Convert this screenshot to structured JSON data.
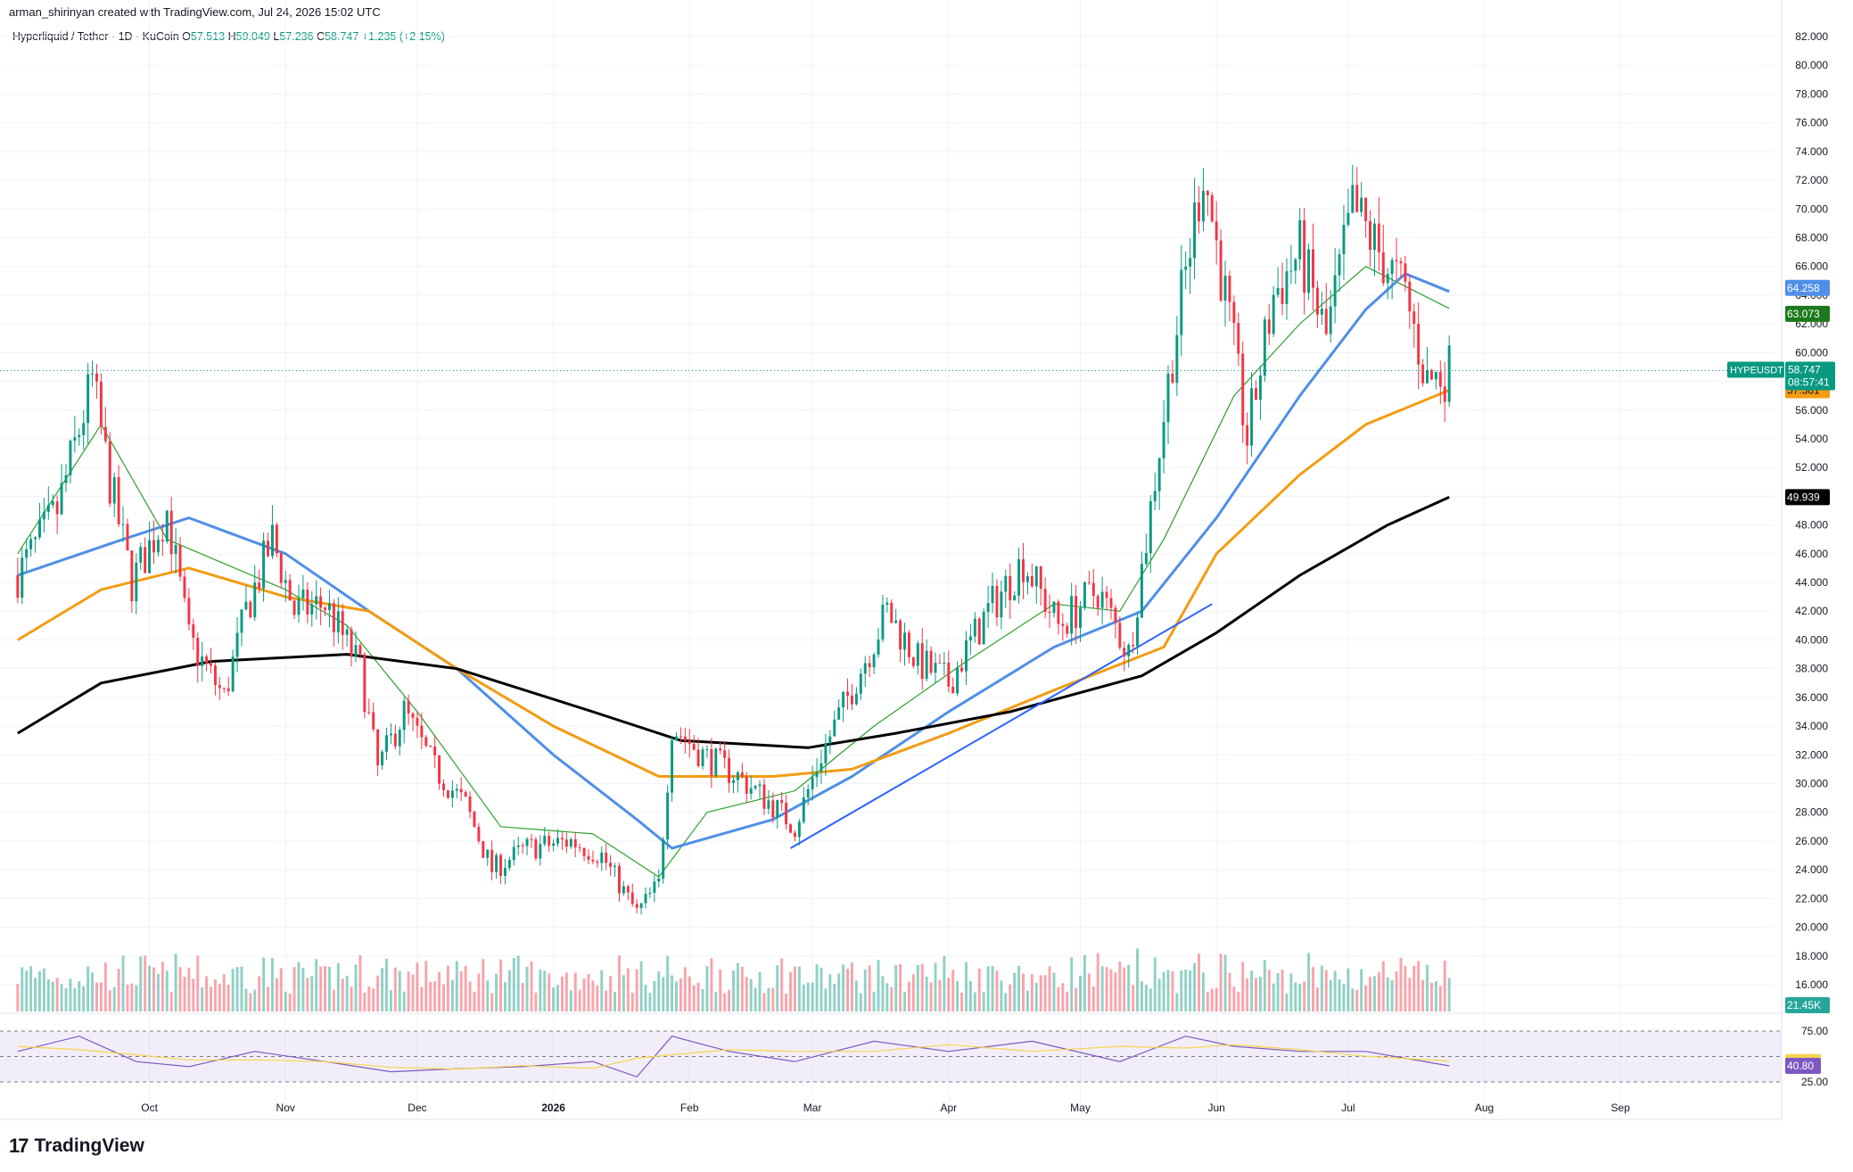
{
  "header": {
    "credit": "arman_shirinyan created with TradingView.com, Jul 24, 2026 15:02 UTC",
    "symbol": "Hyperliquid / Tether · 1D · KuCoin",
    "o_label": "O",
    "o_value": "57.513",
    "h_label": "H",
    "h_value": "59.049",
    "l_label": "L",
    "l_value": "57.236",
    "c_label": "C",
    "c_value": "58.747",
    "change": "+1.235 (+2.15%)"
  },
  "footer": {
    "brand": "TradingView"
  },
  "chart_data": {
    "type": "candlestick",
    "title": "",
    "x_labels": [
      "Oct",
      "Nov",
      "Dec",
      "2026",
      "Feb",
      "Mar",
      "Apr",
      "May",
      "Jun",
      "Jul",
      "Aug",
      "Sep"
    ],
    "y_ticks": [
      "82.000",
      "80.000",
      "78.000",
      "76.000",
      "74.000",
      "72.000",
      "70.000",
      "68.000",
      "66.000",
      "64.000",
      "62.000",
      "60.000",
      "58.000",
      "56.000",
      "54.000",
      "52.000",
      "50.000",
      "48.000",
      "46.000",
      "44.000",
      "42.000",
      "40.000",
      "38.000",
      "36.000",
      "34.000",
      "32.000",
      "30.000",
      "28.000",
      "26.000",
      "24.000",
      "22.000",
      "20.000",
      "18.000",
      "16.000"
    ],
    "ylim": [
      15,
      83
    ],
    "price_series": [
      {
        "date": "2025-09-01",
        "close": 44.5
      },
      {
        "date": "2025-09-10",
        "close": 49.0
      },
      {
        "date": "2025-09-18",
        "close": 58.0
      },
      {
        "date": "2025-09-22",
        "close": 51.0
      },
      {
        "date": "2025-09-27",
        "close": 44.0
      },
      {
        "date": "2025-10-05",
        "close": 49.0
      },
      {
        "date": "2025-10-10",
        "close": 40.0
      },
      {
        "date": "2025-10-14",
        "close": 38.0
      },
      {
        "date": "2025-10-18",
        "close": 36.0
      },
      {
        "date": "2025-10-23",
        "close": 42.0
      },
      {
        "date": "2025-10-29",
        "close": 47.0
      },
      {
        "date": "2025-11-03",
        "close": 42.0
      },
      {
        "date": "2025-11-10",
        "close": 42.5
      },
      {
        "date": "2025-11-18",
        "close": 38.0
      },
      {
        "date": "2025-11-22",
        "close": 31.0
      },
      {
        "date": "2025-11-28",
        "close": 35.0
      },
      {
        "date": "2025-12-05",
        "close": 31.0
      },
      {
        "date": "2025-12-12",
        "close": 28.5
      },
      {
        "date": "2025-12-18",
        "close": 24.0
      },
      {
        "date": "2025-12-26",
        "close": 25.5
      },
      {
        "date": "2026-01-05",
        "close": 26.0
      },
      {
        "date": "2026-01-12",
        "close": 25.0
      },
      {
        "date": "2026-01-20",
        "close": 21.0
      },
      {
        "date": "2026-01-25",
        "close": 23.0
      },
      {
        "date": "2026-01-28",
        "close": 34.0
      },
      {
        "date": "2026-02-04",
        "close": 32.0
      },
      {
        "date": "2026-02-12",
        "close": 30.5
      },
      {
        "date": "2026-02-20",
        "close": 28.5
      },
      {
        "date": "2026-02-25",
        "close": 27.0
      },
      {
        "date": "2026-03-03",
        "close": 32.0
      },
      {
        "date": "2026-03-12",
        "close": 38.0
      },
      {
        "date": "2026-03-18",
        "close": 42.0
      },
      {
        "date": "2026-03-25",
        "close": 38.5
      },
      {
        "date": "2026-04-01",
        "close": 37.0
      },
      {
        "date": "2026-04-10",
        "close": 42.0
      },
      {
        "date": "2026-04-18",
        "close": 45.5
      },
      {
        "date": "2026-04-26",
        "close": 41.0
      },
      {
        "date": "2026-05-05",
        "close": 43.5
      },
      {
        "date": "2026-05-12",
        "close": 39.0
      },
      {
        "date": "2026-05-16",
        "close": 47.0
      },
      {
        "date": "2026-05-22",
        "close": 60.0
      },
      {
        "date": "2026-05-29",
        "close": 73.0
      },
      {
        "date": "2026-06-04",
        "close": 62.0
      },
      {
        "date": "2026-06-08",
        "close": 54.0
      },
      {
        "date": "2026-06-14",
        "close": 64.0
      },
      {
        "date": "2026-06-20",
        "close": 67.0
      },
      {
        "date": "2026-06-26",
        "close": 61.0
      },
      {
        "date": "2026-07-02",
        "close": 70.0
      },
      {
        "date": "2026-07-08",
        "close": 67.0
      },
      {
        "date": "2026-07-14",
        "close": 64.0
      },
      {
        "date": "2026-07-19",
        "close": 58.0
      },
      {
        "date": "2026-07-24",
        "close": 58.747
      }
    ],
    "moving_averages": [
      {
        "name": "fast",
        "color": "#2ca02c",
        "points": [
          [
            "2025-09-01",
            46
          ],
          [
            "2025-09-20",
            55
          ],
          [
            "2025-10-05",
            47
          ],
          [
            "2025-11-01",
            43.5
          ],
          [
            "2025-11-15",
            41
          ],
          [
            "2025-12-01",
            35
          ],
          [
            "2025-12-20",
            27
          ],
          [
            "2026-01-10",
            26.5
          ],
          [
            "2026-01-25",
            23.5
          ],
          [
            "2026-02-05",
            28
          ],
          [
            "2026-02-25",
            29.5
          ],
          [
            "2026-03-15",
            34
          ],
          [
            "2026-04-05",
            38.5
          ],
          [
            "2026-04-25",
            42.5
          ],
          [
            "2026-05-10",
            42
          ],
          [
            "2026-05-20",
            47
          ],
          [
            "2026-06-05",
            57
          ],
          [
            "2026-06-20",
            62
          ],
          [
            "2026-07-05",
            66
          ],
          [
            "2026-07-24",
            63.073
          ]
        ]
      },
      {
        "name": "mid",
        "color": "#4f8fe8",
        "points": [
          [
            "2025-09-01",
            44.5
          ],
          [
            "2025-09-25",
            47
          ],
          [
            "2025-10-10",
            48.5
          ],
          [
            "2025-11-01",
            46
          ],
          [
            "2025-11-20",
            42
          ],
          [
            "2025-12-10",
            38
          ],
          [
            "2026-01-01",
            32
          ],
          [
            "2026-01-20",
            27.5
          ],
          [
            "2026-01-28",
            25.5
          ],
          [
            "2026-02-20",
            27.5
          ],
          [
            "2026-03-10",
            30.5
          ],
          [
            "2026-04-01",
            35
          ],
          [
            "2026-04-25",
            39.5
          ],
          [
            "2026-05-15",
            42
          ],
          [
            "2026-06-01",
            48.5
          ],
          [
            "2026-06-20",
            57
          ],
          [
            "2026-07-05",
            63
          ],
          [
            "2026-07-14",
            65.5
          ],
          [
            "2026-07-24",
            64.258
          ]
        ]
      },
      {
        "name": "slow",
        "color": "#f39c12",
        "points": [
          [
            "2025-09-01",
            40
          ],
          [
            "2025-09-20",
            43.5
          ],
          [
            "2025-10-10",
            45
          ],
          [
            "2025-11-01",
            43
          ],
          [
            "2025-11-20",
            42
          ],
          [
            "2025-12-10",
            38
          ],
          [
            "2026-01-01",
            34
          ],
          [
            "2026-01-25",
            30.5
          ],
          [
            "2026-02-20",
            30.5
          ],
          [
            "2026-03-10",
            31
          ],
          [
            "2026-04-01",
            33.5
          ],
          [
            "2026-04-25",
            36.5
          ],
          [
            "2026-05-20",
            39.5
          ],
          [
            "2026-06-01",
            46
          ],
          [
            "2026-06-20",
            51.5
          ],
          [
            "2026-07-05",
            55
          ],
          [
            "2026-07-24",
            57.381
          ]
        ]
      },
      {
        "name": "long",
        "color": "#000000",
        "points": [
          [
            "2025-09-01",
            33.5
          ],
          [
            "2025-09-20",
            37
          ],
          [
            "2025-10-15",
            38.5
          ],
          [
            "2025-11-15",
            39
          ],
          [
            "2025-12-10",
            38
          ],
          [
            "2026-01-10",
            35
          ],
          [
            "2026-01-30",
            33
          ],
          [
            "2026-02-28",
            32.5
          ],
          [
            "2026-03-20",
            33.5
          ],
          [
            "2026-04-15",
            35
          ],
          [
            "2026-05-15",
            37.5
          ],
          [
            "2026-06-01",
            40.5
          ],
          [
            "2026-06-20",
            44.5
          ],
          [
            "2026-07-10",
            48
          ],
          [
            "2026-07-24",
            49.939
          ]
        ]
      }
    ],
    "trendline": [
      [
        "2026-02-24",
        25.5
      ],
      [
        "2026-05-31",
        42.5
      ]
    ],
    "last_price": "58.747",
    "countdown": "08:57:41",
    "symbol_tag": "HYPEUSDT",
    "ma_tags": [
      {
        "value": "64.258",
        "color": "#4f8fe8",
        "text_color": "#ffffff"
      },
      {
        "value": "63.073",
        "color": "#1b7a1b",
        "text_color": "#ffffff"
      },
      {
        "value": "57.381",
        "color": "#f39c12",
        "text_color": "#131722"
      },
      {
        "value": "49.939",
        "color": "#000000",
        "text_color": "#ffffff"
      }
    ],
    "volume_tag": "21.45K",
    "rsi": {
      "ticks": [
        "75.00",
        "25.00"
      ],
      "value": "40.80",
      "ma_value": "44.52",
      "points": [
        [
          "2025-09-01",
          55
        ],
        [
          "2025-09-15",
          70
        ],
        [
          "2025-09-28",
          45
        ],
        [
          "2025-10-10",
          40
        ],
        [
          "2025-10-25",
          55
        ],
        [
          "2025-11-10",
          45
        ],
        [
          "2025-11-25",
          35
        ],
        [
          "2025-12-10",
          38
        ],
        [
          "2025-12-25",
          40
        ],
        [
          "2026-01-10",
          45
        ],
        [
          "2026-01-20",
          30
        ],
        [
          "2026-01-28",
          70
        ],
        [
          "2026-02-10",
          55
        ],
        [
          "2026-02-25",
          45
        ],
        [
          "2026-03-15",
          65
        ],
        [
          "2026-04-01",
          55
        ],
        [
          "2026-04-20",
          65
        ],
        [
          "2026-05-10",
          45
        ],
        [
          "2026-05-25",
          70
        ],
        [
          "2026-06-05",
          60
        ],
        [
          "2026-06-20",
          55
        ],
        [
          "2026-07-05",
          55
        ],
        [
          "2026-07-24",
          40.8
        ]
      ]
    }
  }
}
